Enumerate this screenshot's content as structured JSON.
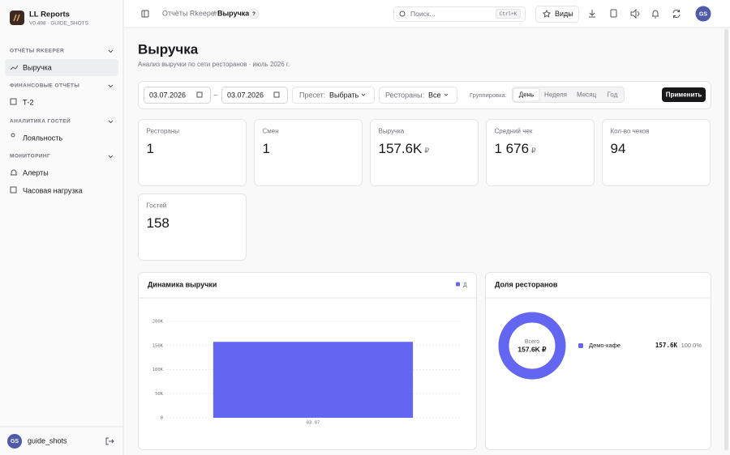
{
  "sidebar": {
    "app_name": "LL Reports",
    "version": "V0.498 · GUIDE_SHOTS",
    "sections": [
      {
        "title": "ОТЧЁТЫ RKEEPER",
        "items": [
          "Выручка"
        ]
      },
      {
        "title": "ФИНАНСОВЫЕ ОТЧЁТЫ",
        "items": [
          "Т-2"
        ]
      },
      {
        "title": "АНАЛИТИКА ГОСТЕЙ",
        "items": [
          "Лояльность"
        ]
      },
      {
        "title": "МОНИТОРИНГ",
        "items": [
          "Алерты",
          "Часовая нагрузка"
        ]
      }
    ],
    "user": {
      "initials": "GS",
      "name": "guide_shots"
    }
  },
  "header": {
    "breadcrumb_parent": "Отчёты Rkeeper",
    "separator": "/",
    "breadcrumb_current": "Выручка",
    "help": "?",
    "search_placeholder": "Поиск...",
    "search_shortcut": "Ctrl+K",
    "views_button": "Виды",
    "user_initials": "GS"
  },
  "page": {
    "title": "Выручка",
    "subtitle": "Анализ выручки по сети ресторанов · июль 2026 г."
  },
  "filters": {
    "date_from": "03.07.2026",
    "date_separator": "–",
    "date_to": "03.07.2026",
    "preset_label": "Пресет:",
    "preset_value": "Выбрать",
    "restaurants_label": "Рестораны:",
    "restaurants_value": "Все",
    "grouping_label": "Группировка:",
    "grouping_options": [
      "День",
      "Неделя",
      "Месяц",
      "Год"
    ],
    "apply": "Применить"
  },
  "kpis": [
    {
      "label": "Рестораны",
      "value": "1"
    },
    {
      "label": "Смен",
      "value": "1"
    },
    {
      "label": "Выручка",
      "value": "157.6K",
      "unit": "₽"
    },
    {
      "label": "Средний чек",
      "value": "1 676",
      "unit": "₽"
    },
    {
      "label": "Кол-во чеков",
      "value": "94"
    },
    {
      "label": "Гостей",
      "value": "158"
    }
  ],
  "revenue_chart": {
    "type": "bar",
    "title": "Динамика выручки",
    "categories": [
      "03.07"
    ],
    "series": [
      {
        "name": "Д",
        "color": "#6366f1",
        "values": [
          157600
        ]
      }
    ],
    "ylim": [
      0,
      200000
    ],
    "yticks": [
      0,
      {
        "value": 50000,
        "label": "50K"
      },
      {
        "value": 100000,
        "label": "100K"
      },
      {
        "value": 150000,
        "label": "150K"
      },
      {
        "value": 200000,
        "label": "200K"
      }
    ],
    "grid": true
  },
  "share_chart": {
    "type": "donut",
    "title": "Доля ресторанов",
    "center_label": "Всего",
    "center_value": "157.6K ₽",
    "slices": [
      {
        "name": "Демо-кафе",
        "color": "#6366f1",
        "amount": "157.6K",
        "value": 100,
        "value_label": "100.0%"
      }
    ]
  }
}
